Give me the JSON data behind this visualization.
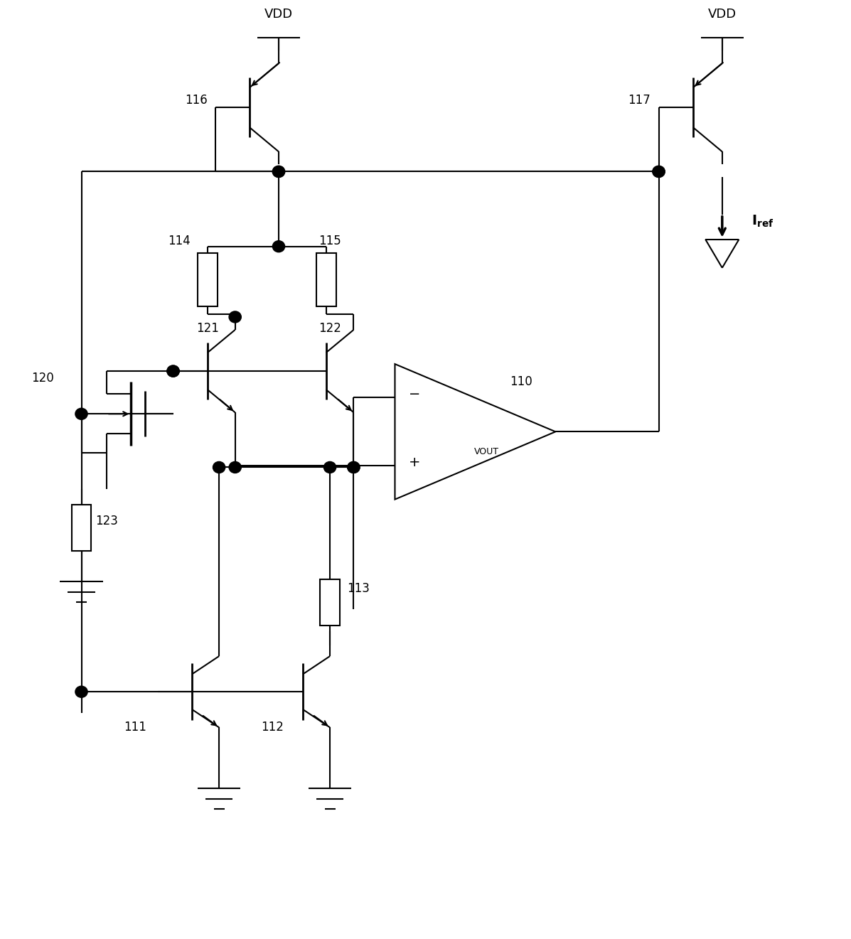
{
  "bg": "#ffffff",
  "lc": "#000000",
  "lw": 1.5,
  "fw": 11.97,
  "fh": 13.21,
  "xlim": [
    0,
    11
  ],
  "ylim": [
    0,
    13
  ]
}
